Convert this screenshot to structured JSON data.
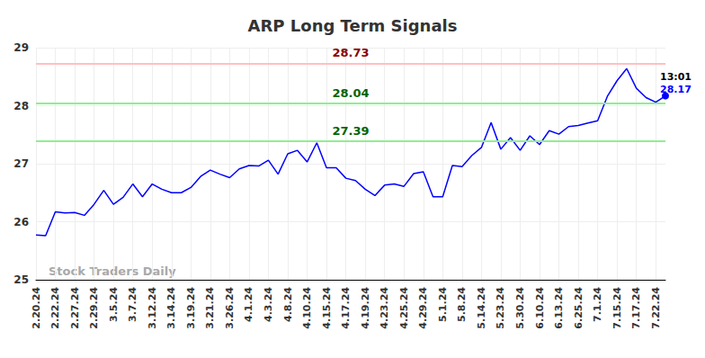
{
  "chart_data": {
    "type": "line",
    "title": "ARP Long Term Signals",
    "watermark": "Stock Traders Daily",
    "categories": [
      "2.20.24",
      null,
      "2.22.24",
      null,
      "2.27.24",
      null,
      "2.29.24",
      null,
      "3.5.24",
      null,
      "3.7.24",
      null,
      "3.12.24",
      null,
      "3.14.24",
      null,
      "3.19.24",
      null,
      "3.21.24",
      null,
      "3.26.24",
      null,
      "4.1.24",
      null,
      "4.3.24",
      null,
      "4.8.24",
      null,
      "4.10.24",
      null,
      "4.15.24",
      null,
      "4.17.24",
      null,
      "4.19.24",
      null,
      "4.23.24",
      null,
      "4.25.24",
      null,
      "4.29.24",
      null,
      "5.1.24",
      null,
      "5.8.24",
      null,
      "5.14.24",
      null,
      "5.23.24",
      null,
      "5.30.24",
      null,
      "6.10.24",
      null,
      "6.13.24",
      null,
      "6.25.24",
      null,
      "7.1.24",
      null,
      "7.15.24",
      null,
      "7.17.24",
      null,
      "7.22.24",
      null
    ],
    "values": [
      25.77,
      25.76,
      26.17,
      26.15,
      26.16,
      26.11,
      26.3,
      26.54,
      26.3,
      26.42,
      26.65,
      26.43,
      26.65,
      26.56,
      26.5,
      26.5,
      26.59,
      26.78,
      26.89,
      26.82,
      26.76,
      26.91,
      26.97,
      26.96,
      27.06,
      26.82,
      27.17,
      27.23,
      27.03,
      27.36,
      26.93,
      26.93,
      26.75,
      26.71,
      26.56,
      26.45,
      26.63,
      26.65,
      26.61,
      26.83,
      26.86,
      26.43,
      26.43,
      26.97,
      26.95,
      27.14,
      27.28,
      27.71,
      27.25,
      27.45,
      27.23,
      27.48,
      27.33,
      27.57,
      27.51,
      27.64,
      27.66,
      27.7,
      27.74,
      28.16,
      28.43,
      28.64,
      28.3,
      28.14,
      28.06,
      28.17
    ],
    "color": "#0000ff",
    "levels": [
      {
        "value": 28.73,
        "color": "#ffc0c0"
      },
      {
        "value": 28.04,
        "color": "#90ee90"
      },
      {
        "value": 27.39,
        "color": "#90ee90"
      }
    ],
    "last_point": {
      "time": "13:01",
      "value": 28.17
    },
    "ylim": [
      25,
      29
    ],
    "yticks": [
      25,
      26,
      27,
      28,
      29
    ],
    "grid": true
  }
}
